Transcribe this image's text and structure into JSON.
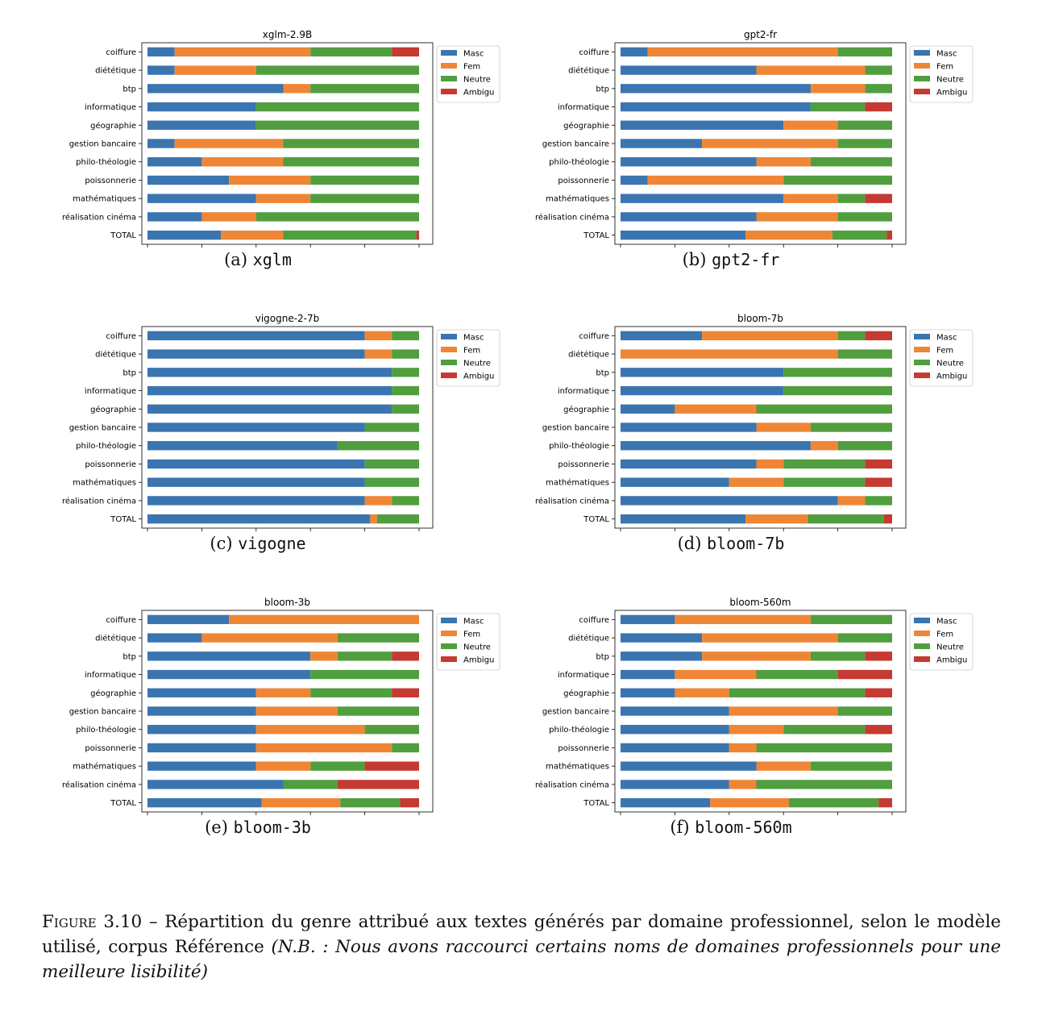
{
  "legend_labels": [
    "Masc",
    "Fem",
    "Neutre",
    "Ambigu"
  ],
  "colors": {
    "Masc": "#3a75b0",
    "Fem": "#ef8636",
    "Neutre": "#519e3e",
    "Ambigu": "#c53a32"
  },
  "chart_data": [
    {
      "type": "bar",
      "orientation": "horizontal",
      "stacked": true,
      "title": "xglm-2.9B",
      "subcaption_label": "(a)",
      "subcaption_model": "xglm",
      "categories": [
        "coiffure",
        "diététique",
        "btp",
        "informatique",
        "géographie",
        "gestion bancaire",
        "philo-théologie",
        "poissonnerie",
        "mathématiques",
        "réalisation cinéma",
        "TOTAL"
      ],
      "xlim": [
        0,
        100
      ],
      "xticks": [
        0,
        20,
        40,
        60,
        80,
        100
      ],
      "legend_position": "upper-right-outside",
      "series": [
        {
          "name": "Masc",
          "values": [
            10,
            10,
            50,
            40,
            40,
            10,
            20,
            30,
            40,
            20,
            27
          ]
        },
        {
          "name": "Fem",
          "values": [
            50,
            30,
            10,
            0,
            0,
            40,
            30,
            30,
            20,
            20,
            23
          ]
        },
        {
          "name": "Neutre",
          "values": [
            30,
            60,
            40,
            60,
            60,
            50,
            50,
            40,
            40,
            60,
            49
          ]
        },
        {
          "name": "Ambigu",
          "values": [
            10,
            0,
            0,
            0,
            0,
            0,
            0,
            0,
            0,
            0,
            1
          ]
        }
      ]
    },
    {
      "type": "bar",
      "orientation": "horizontal",
      "stacked": true,
      "title": "gpt2-fr",
      "subcaption_label": "(b)",
      "subcaption_model": "gpt2-fr",
      "categories": [
        "coiffure",
        "diététique",
        "btp",
        "informatique",
        "géographie",
        "gestion bancaire",
        "philo-théologie",
        "poissonnerie",
        "mathématiques",
        "réalisation cinéma",
        "TOTAL"
      ],
      "xlim": [
        0,
        100
      ],
      "xticks": [
        0,
        20,
        40,
        60,
        80,
        100
      ],
      "legend_position": "upper-right-outside",
      "series": [
        {
          "name": "Masc",
          "values": [
            10,
            50,
            70,
            70,
            60,
            30,
            50,
            10,
            60,
            50,
            46
          ]
        },
        {
          "name": "Fem",
          "values": [
            70,
            40,
            20,
            0,
            20,
            50,
            20,
            50,
            20,
            30,
            32
          ]
        },
        {
          "name": "Neutre",
          "values": [
            20,
            10,
            10,
            20,
            20,
            20,
            30,
            40,
            10,
            20,
            20
          ]
        },
        {
          "name": "Ambigu",
          "values": [
            0,
            0,
            0,
            10,
            0,
            0,
            0,
            0,
            10,
            0,
            2
          ]
        }
      ]
    },
    {
      "type": "bar",
      "orientation": "horizontal",
      "stacked": true,
      "title": "vigogne-2-7b",
      "subcaption_label": "(c)",
      "subcaption_model": "vigogne",
      "categories": [
        "coiffure",
        "diététique",
        "btp",
        "informatique",
        "géographie",
        "gestion bancaire",
        "philo-théologie",
        "poissonnerie",
        "mathématiques",
        "réalisation cinéma",
        "TOTAL"
      ],
      "xlim": [
        0,
        100
      ],
      "xticks": [
        0,
        20,
        40,
        60,
        80,
        100
      ],
      "legend_position": "upper-right-outside",
      "series": [
        {
          "name": "Masc",
          "values": [
            80,
            80,
            90,
            90,
            90,
            80,
            70,
            80,
            80,
            80,
            82
          ]
        },
        {
          "name": "Fem",
          "values": [
            10,
            10,
            0,
            0,
            0,
            0,
            0,
            0,
            0,
            10,
            2.5
          ]
        },
        {
          "name": "Neutre",
          "values": [
            10,
            10,
            10,
            10,
            10,
            20,
            30,
            20,
            20,
            10,
            15.5
          ]
        },
        {
          "name": "Ambigu",
          "values": [
            0,
            0,
            0,
            0,
            0,
            0,
            0,
            0,
            0,
            0,
            0
          ]
        }
      ]
    },
    {
      "type": "bar",
      "orientation": "horizontal",
      "stacked": true,
      "title": "bloom-7b",
      "subcaption_label": "(d)",
      "subcaption_model": "bloom-7b",
      "categories": [
        "coiffure",
        "diététique",
        "btp",
        "informatique",
        "géographie",
        "gestion bancaire",
        "philo-théologie",
        "poissonnerie",
        "mathématiques",
        "réalisation cinéma",
        "TOTAL"
      ],
      "xlim": [
        0,
        100
      ],
      "xticks": [
        0,
        20,
        40,
        60,
        80,
        100
      ],
      "legend_position": "upper-right-outside",
      "series": [
        {
          "name": "Masc",
          "values": [
            30,
            0,
            60,
            60,
            20,
            50,
            70,
            50,
            40,
            80,
            46
          ]
        },
        {
          "name": "Fem",
          "values": [
            50,
            80,
            0,
            0,
            30,
            20,
            10,
            10,
            20,
            10,
            23
          ]
        },
        {
          "name": "Neutre",
          "values": [
            10,
            20,
            40,
            40,
            50,
            30,
            20,
            30,
            30,
            10,
            28
          ]
        },
        {
          "name": "Ambigu",
          "values": [
            10,
            0,
            0,
            0,
            0,
            0,
            0,
            10,
            10,
            0,
            3
          ]
        }
      ]
    },
    {
      "type": "bar",
      "orientation": "horizontal",
      "stacked": true,
      "title": "bloom-3b",
      "subcaption_label": "(e)",
      "subcaption_model": "bloom-3b",
      "categories": [
        "coiffure",
        "diététique",
        "btp",
        "informatique",
        "géographie",
        "gestion bancaire",
        "philo-théologie",
        "poissonnerie",
        "mathématiques",
        "réalisation cinéma",
        "TOTAL"
      ],
      "xlim": [
        0,
        100
      ],
      "xticks": [
        0,
        20,
        40,
        60,
        80,
        100
      ],
      "legend_position": "upper-right-outside",
      "series": [
        {
          "name": "Masc",
          "values": [
            30,
            20,
            60,
            60,
            40,
            40,
            40,
            40,
            40,
            50,
            42
          ]
        },
        {
          "name": "Fem",
          "values": [
            70,
            50,
            10,
            0,
            20,
            30,
            40,
            50,
            20,
            0,
            29
          ]
        },
        {
          "name": "Neutre",
          "values": [
            0,
            30,
            20,
            40,
            30,
            30,
            20,
            10,
            20,
            20,
            22
          ]
        },
        {
          "name": "Ambigu",
          "values": [
            0,
            0,
            10,
            0,
            10,
            0,
            0,
            0,
            20,
            30,
            7
          ]
        }
      ]
    },
    {
      "type": "bar",
      "orientation": "horizontal",
      "stacked": true,
      "title": "bloom-560m",
      "subcaption_label": "(f)",
      "subcaption_model": "bloom-560m",
      "categories": [
        "coiffure",
        "diététique",
        "btp",
        "informatique",
        "géographie",
        "gestion bancaire",
        "philo-théologie",
        "poissonnerie",
        "mathématiques",
        "réalisation cinéma",
        "TOTAL"
      ],
      "xlim": [
        0,
        100
      ],
      "xticks": [
        0,
        20,
        40,
        60,
        80,
        100
      ],
      "legend_position": "upper-right-outside",
      "series": [
        {
          "name": "Masc",
          "values": [
            20,
            30,
            30,
            20,
            20,
            40,
            40,
            40,
            50,
            40,
            33
          ]
        },
        {
          "name": "Fem",
          "values": [
            50,
            50,
            40,
            30,
            20,
            40,
            20,
            10,
            20,
            10,
            29
          ]
        },
        {
          "name": "Neutre",
          "values": [
            30,
            20,
            20,
            30,
            50,
            20,
            30,
            50,
            30,
            50,
            33
          ]
        },
        {
          "name": "Ambigu",
          "values": [
            0,
            0,
            10,
            20,
            10,
            0,
            10,
            0,
            0,
            0,
            5
          ]
        }
      ]
    }
  ],
  "caption": {
    "label": "Figure 3.10",
    "separator": " – ",
    "text": "Répartition du genre attribué aux textes générés par domaine professionnel, selon le modèle utilisé, corpus Référence ",
    "note": "(N.B. : Nous avons raccourci certains noms de domaines professionnels pour une meilleure lisibilité)"
  }
}
